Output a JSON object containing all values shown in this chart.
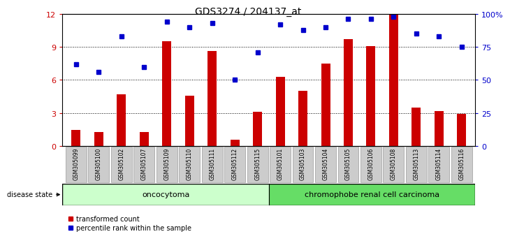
{
  "title": "GDS3274 / 204137_at",
  "categories": [
    "GSM305099",
    "GSM305100",
    "GSM305102",
    "GSM305107",
    "GSM305109",
    "GSM305110",
    "GSM305111",
    "GSM305112",
    "GSM305115",
    "GSM305101",
    "GSM305103",
    "GSM305104",
    "GSM305105",
    "GSM305106",
    "GSM305108",
    "GSM305113",
    "GSM305114",
    "GSM305116"
  ],
  "red_bars": [
    1.5,
    1.3,
    4.7,
    1.3,
    9.5,
    4.6,
    8.6,
    0.6,
    3.1,
    6.3,
    5.0,
    7.5,
    9.7,
    9.1,
    12.0,
    3.5,
    3.2,
    2.9
  ],
  "blue_dots_pct": [
    62,
    56,
    83,
    60,
    94,
    90,
    93,
    50,
    71,
    92,
    88,
    90,
    96,
    96,
    98,
    85,
    83,
    75
  ],
  "group1_label": "oncocytoma",
  "group2_label": "chromophobe renal cell carcinoma",
  "group1_count": 9,
  "group2_count": 9,
  "disease_state_label": "disease state",
  "legend1": "transformed count",
  "legend2": "percentile rank within the sample",
  "ylim_left": [
    0,
    12
  ],
  "ylim_right": [
    0,
    100
  ],
  "yticks_left": [
    0,
    3,
    6,
    9,
    12
  ],
  "yticks_right": [
    0,
    25,
    50,
    75,
    100
  ],
  "bar_color": "#cc0000",
  "dot_color": "#0000cc",
  "group1_color": "#ccffcc",
  "group2_color": "#66dd66",
  "tick_label_bg": "#cccccc",
  "title_fontsize": 10,
  "bar_width": 0.4
}
